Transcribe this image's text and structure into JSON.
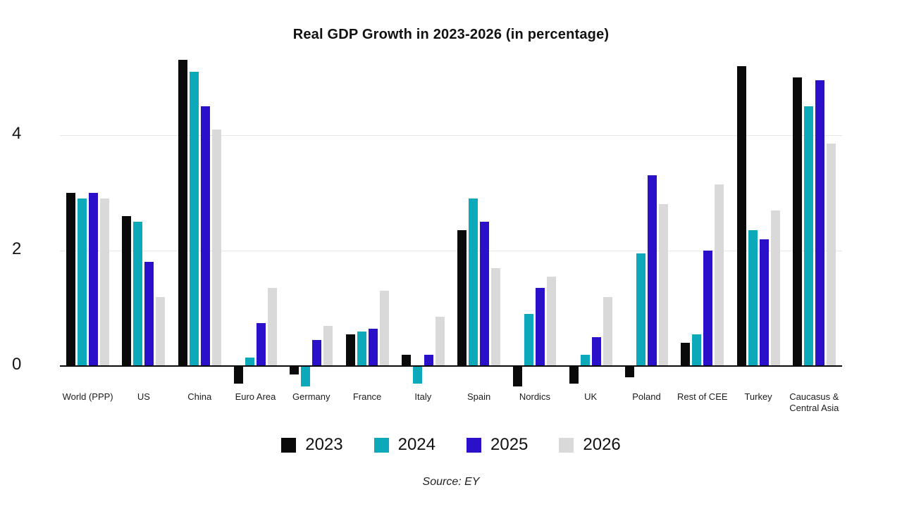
{
  "title": "Real GDP Growth in 2023-2026 (in percentage)",
  "source": "Source: EY",
  "chart_data": {
    "type": "bar",
    "title": "Real GDP Growth in 2023-2026 (in percentage)",
    "xlabel": "",
    "ylabel": "",
    "y_ticks": [
      0,
      2,
      4
    ],
    "ylim": [
      -0.6,
      5.6
    ],
    "grid": "horizontal",
    "legend_position": "bottom",
    "source": "Source: EY",
    "categories": [
      "World (PPP)",
      "US",
      "China",
      "Euro Area",
      "Germany",
      "France",
      "Italy",
      "Spain",
      "Nordics",
      "UK",
      "Poland",
      "Rest of CEE",
      "Turkey",
      "Caucasus & Central Asia"
    ],
    "series": [
      {
        "name": "2023",
        "color": "#0a0a0b",
        "values": [
          3.0,
          2.6,
          5.3,
          -0.3,
          -0.15,
          0.55,
          0.2,
          2.35,
          -0.35,
          -0.3,
          -0.2,
          0.4,
          5.2,
          5.0
        ]
      },
      {
        "name": "2024",
        "color": "#0ba9b9",
        "values": [
          2.9,
          2.5,
          5.1,
          0.15,
          -0.35,
          0.6,
          -0.3,
          2.9,
          0.9,
          0.2,
          1.95,
          0.55,
          2.35,
          4.5
        ]
      },
      {
        "name": "2025",
        "color": "#2a10c8",
        "values": [
          3.0,
          1.8,
          4.5,
          0.75,
          0.45,
          0.65,
          0.2,
          2.5,
          1.35,
          0.5,
          3.3,
          2.0,
          2.2,
          4.95
        ]
      },
      {
        "name": "2026",
        "color": "#d9d9d9",
        "values": [
          2.9,
          1.2,
          4.1,
          1.35,
          0.7,
          1.3,
          0.85,
          1.7,
          1.55,
          1.2,
          2.8,
          3.15,
          2.7,
          3.85
        ]
      }
    ]
  }
}
